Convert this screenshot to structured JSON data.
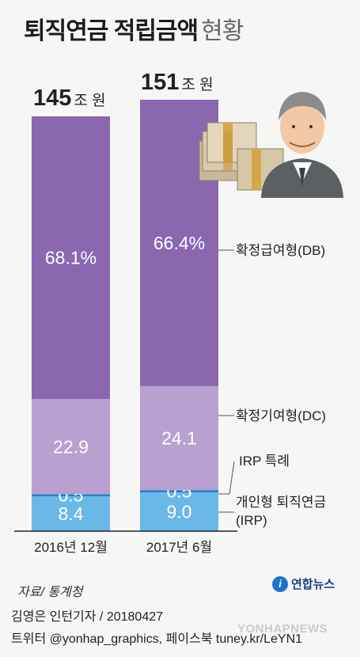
{
  "title": {
    "main": "퇴직연금 적립금액",
    "sub": "현황"
  },
  "totals": [
    {
      "value": "145",
      "unit": "조 원"
    },
    {
      "value": "151",
      "unit": "조 원"
    }
  ],
  "chart_data": {
    "type": "stacked-bar",
    "categories": [
      "2016년 12월",
      "2017년 6월"
    ],
    "series": [
      {
        "name": "개인형 퇴직연금(IRP)",
        "values": [
          8.4,
          9.0
        ],
        "labels": [
          "8.4",
          "9.0"
        ],
        "color": "#6ab8e8"
      },
      {
        "name": "IRP 특례",
        "values": [
          0.5,
          0.5
        ],
        "labels": [
          "0.5",
          "0.5"
        ],
        "color": "#1f7fcb"
      },
      {
        "name": "확정기여형(DC)",
        "values": [
          22.9,
          24.1
        ],
        "labels": [
          "22.9",
          "24.1"
        ],
        "color": "#b8a0d0"
      },
      {
        "name": "확정급여형(DB)",
        "values": [
          68.1,
          66.4
        ],
        "labels": [
          "68.1%",
          "66.4%"
        ],
        "color": "#8968b0"
      }
    ],
    "unit": "%",
    "ylim": [
      0,
      100
    ]
  },
  "legend_labels": {
    "db": "확정급여형(DB)",
    "dc": "확정기여형(DC)",
    "irp_special": "IRP 특례",
    "irp_line1": "개인형 퇴직연금",
    "irp_line2": "(IRP)"
  },
  "source": "자료/ 통계청",
  "logo_text": "연합뉴스",
  "logo_mark": "i",
  "credit_author": "김영은 인턴기자 / 20180427",
  "credit_social": "트위터 @yonhap_graphics, 페이스북 tuney.kr/LeYN1",
  "watermark": "YONHAPNEWS",
  "colors": {
    "axis": "#222222",
    "leader": "#555555"
  }
}
